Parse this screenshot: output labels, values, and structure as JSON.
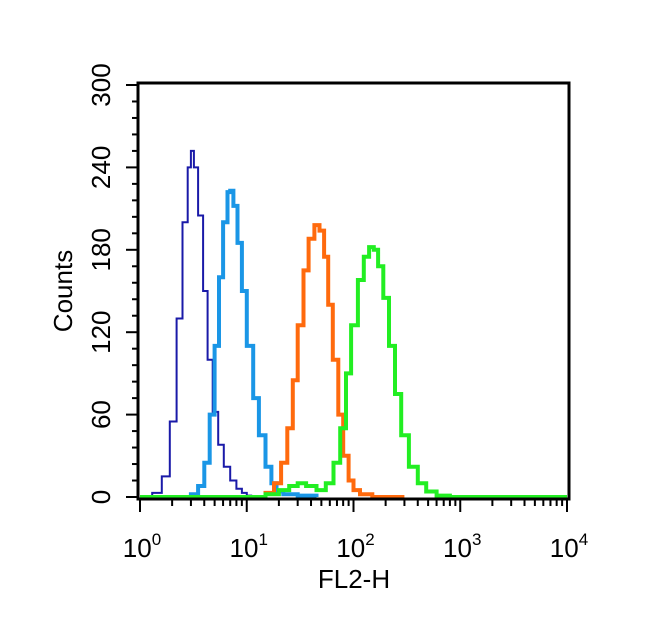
{
  "chart_data": {
    "type": "line",
    "title": "",
    "xlabel": "FL2-H",
    "ylabel": "Counts",
    "x_scale": "log",
    "xlim": [
      1,
      10000
    ],
    "ylim": [
      0,
      300
    ],
    "x_ticks": [
      {
        "value": 1,
        "base": "10",
        "exp": "0"
      },
      {
        "value": 10,
        "base": "10",
        "exp": "1"
      },
      {
        "value": 100,
        "base": "10",
        "exp": "2"
      },
      {
        "value": 1000,
        "base": "10",
        "exp": "3"
      },
      {
        "value": 10000,
        "base": "10",
        "exp": "4"
      }
    ],
    "y_ticks": [
      "0",
      "60",
      "120",
      "180",
      "240",
      "300"
    ],
    "grid": false,
    "legend": "none",
    "series": [
      {
        "color": "#1a1aa8",
        "stroke_width": 2,
        "x": [
          1.0,
          1.3,
          1.6,
          1.9,
          2.2,
          2.5,
          2.8,
          3.0,
          3.2,
          3.5,
          3.9,
          4.3,
          4.8,
          5.4,
          6.1,
          7.0,
          8.0,
          9.0,
          10.0,
          11.0,
          12.0
        ],
        "y": [
          0,
          3,
          15,
          55,
          130,
          200,
          240,
          252,
          240,
          205,
          150,
          100,
          62,
          38,
          22,
          12,
          6,
          3,
          1,
          0,
          0
        ]
      },
      {
        "color": "#1a96e6",
        "stroke_width": 4,
        "x": [
          2.5,
          3.0,
          3.5,
          4.0,
          4.5,
          5.0,
          5.5,
          6.0,
          6.6,
          7.0,
          7.5,
          8.2,
          9.0,
          10.0,
          11.5,
          13.0,
          15.0,
          17.0,
          19.0,
          22.0,
          30.0,
          45.0
        ],
        "y": [
          0,
          2,
          8,
          25,
          60,
          110,
          160,
          200,
          222,
          223,
          212,
          185,
          150,
          110,
          72,
          45,
          22,
          10,
          4,
          2,
          1,
          0
        ]
      },
      {
        "color": "#ff6a0d",
        "stroke_width": 4,
        "x": [
          12.0,
          15.0,
          18.0,
          21.0,
          24.0,
          27.0,
          30.0,
          34.0,
          38.0,
          43.0,
          48.0,
          53.0,
          58.0,
          64.0,
          72.0,
          80.0,
          90.0,
          100.0,
          115.0,
          150.0,
          300.0
        ],
        "y": [
          0,
          3,
          10,
          25,
          50,
          85,
          125,
          165,
          188,
          198,
          194,
          175,
          140,
          100,
          60,
          30,
          12,
          5,
          2,
          0,
          0
        ]
      },
      {
        "color": "#22ee22",
        "stroke_width": 4,
        "x": [
          1.0,
          10.0,
          15.0,
          20.0,
          25.0,
          30.0,
          36.0,
          45.0,
          55.0,
          65.0,
          75.0,
          85.0,
          95.0,
          110.0,
          125.0,
          140.0,
          155.0,
          170.0,
          190.0,
          215.0,
          245.0,
          280.0,
          330.0,
          400.0,
          480.0,
          600.0,
          800.0,
          10000.0
        ],
        "y": [
          0,
          0,
          2,
          5,
          8,
          10,
          8,
          5,
          10,
          25,
          50,
          90,
          125,
          158,
          175,
          182,
          180,
          168,
          145,
          110,
          75,
          45,
          22,
          10,
          4,
          1,
          0,
          0
        ]
      }
    ]
  }
}
